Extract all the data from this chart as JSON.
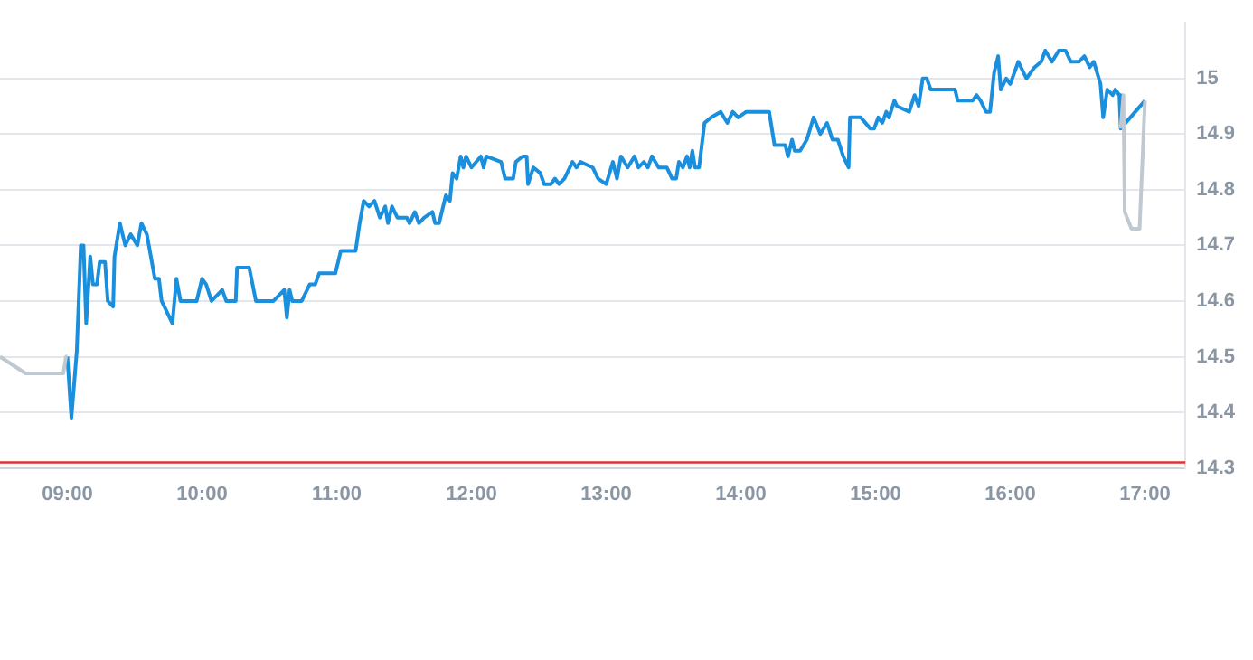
{
  "chart_data": {
    "type": "line",
    "xlim": [
      8.5,
      17.3
    ],
    "ylim": [
      14.3,
      15.1
    ],
    "xticks": [
      {
        "value": 9,
        "label": "09:00"
      },
      {
        "value": 10,
        "label": "10:00"
      },
      {
        "value": 11,
        "label": "11:00"
      },
      {
        "value": 12,
        "label": "12:00"
      },
      {
        "value": 13,
        "label": "13:00"
      },
      {
        "value": 14,
        "label": "14:00"
      },
      {
        "value": 15,
        "label": "15:00"
      },
      {
        "value": 16,
        "label": "16:00"
      },
      {
        "value": 17,
        "label": "17:00"
      }
    ],
    "yticks": [
      14.3,
      14.4,
      14.5,
      14.6,
      14.7,
      14.8,
      14.9,
      15
    ],
    "grid": "y",
    "legend": false,
    "marker": "none",
    "line_style": "solid",
    "ref_lines": [
      {
        "axis": "y",
        "value": 14.31,
        "color": "#e03030"
      }
    ],
    "series": [
      {
        "color": "#c0c8d0",
        "x": [
          8.5,
          8.69,
          8.97,
          8.99,
          9.0
        ],
        "values": [
          14.5,
          14.47,
          14.47,
          14.5,
          14.5
        ]
      },
      {
        "color": "#c0c8d0",
        "x": [
          16.82,
          16.84,
          16.85,
          16.9,
          16.96,
          17.0
        ],
        "values": [
          14.91,
          14.97,
          14.76,
          14.73,
          14.73,
          14.96
        ]
      },
      {
        "color": "#1a8fdd",
        "x": [
          9.0,
          9.03,
          9.07,
          9.1,
          9.12,
          9.14,
          9.17,
          9.19,
          9.22,
          9.24,
          9.28,
          9.3,
          9.34,
          9.35,
          9.39,
          9.43,
          9.47,
          9.52,
          9.55,
          9.59,
          9.62,
          9.65,
          9.68,
          9.7,
          9.78,
          9.81,
          9.84,
          9.96,
          10.0,
          10.03,
          10.07,
          10.15,
          10.18,
          10.25,
          10.26,
          10.35,
          10.4,
          10.53,
          10.61,
          10.63,
          10.65,
          10.67,
          10.74,
          10.8,
          10.84,
          10.87,
          10.91,
          10.99,
          11.03,
          11.14,
          11.17,
          11.2,
          11.24,
          11.28,
          11.32,
          11.36,
          11.38,
          11.41,
          11.45,
          11.52,
          11.54,
          11.58,
          11.61,
          11.65,
          11.71,
          11.73,
          11.76,
          11.81,
          11.84,
          11.86,
          11.89,
          11.92,
          11.94,
          11.96,
          12.0,
          12.07,
          12.09,
          12.11,
          12.22,
          12.25,
          12.31,
          12.33,
          12.38,
          12.41,
          12.42,
          12.46,
          12.51,
          12.54,
          12.59,
          12.62,
          12.65,
          12.69,
          12.75,
          12.78,
          12.81,
          12.9,
          12.94,
          13.0,
          13.05,
          13.08,
          13.11,
          13.16,
          13.21,
          13.24,
          13.28,
          13.31,
          13.34,
          13.39,
          13.45,
          13.49,
          13.52,
          13.54,
          13.57,
          13.6,
          13.62,
          13.64,
          13.66,
          13.69,
          13.73,
          13.78,
          13.85,
          13.9,
          13.94,
          13.98,
          14.04,
          14.21,
          14.25,
          14.33,
          14.35,
          14.38,
          14.4,
          14.44,
          14.49,
          14.54,
          14.59,
          14.64,
          14.68,
          14.72,
          14.76,
          14.8,
          14.81,
          14.89,
          14.96,
          14.99,
          15.02,
          15.05,
          15.08,
          15.1,
          15.14,
          15.16,
          15.25,
          15.29,
          15.32,
          15.35,
          15.38,
          15.41,
          15.59,
          15.61,
          15.72,
          15.75,
          15.78,
          15.82,
          15.85,
          15.88,
          15.91,
          15.93,
          15.97,
          16.0,
          16.06,
          16.12,
          16.18,
          16.23,
          16.26,
          16.31,
          16.36,
          16.41,
          16.45,
          16.51,
          16.55,
          16.59,
          16.62,
          16.67,
          16.69,
          16.72,
          16.76,
          16.78,
          16.81,
          16.82,
          17.0
        ],
        "values": [
          14.5,
          14.39,
          14.51,
          14.7,
          14.7,
          14.56,
          14.68,
          14.63,
          14.63,
          14.67,
          14.67,
          14.6,
          14.59,
          14.68,
          14.74,
          14.7,
          14.72,
          14.7,
          14.74,
          14.72,
          14.68,
          14.64,
          14.64,
          14.6,
          14.56,
          14.64,
          14.6,
          14.6,
          14.64,
          14.63,
          14.6,
          14.62,
          14.6,
          14.6,
          14.66,
          14.66,
          14.6,
          14.6,
          14.62,
          14.57,
          14.62,
          14.6,
          14.6,
          14.63,
          14.63,
          14.65,
          14.65,
          14.65,
          14.69,
          14.69,
          14.74,
          14.78,
          14.77,
          14.78,
          14.75,
          14.77,
          14.74,
          14.77,
          14.75,
          14.75,
          14.74,
          14.76,
          14.74,
          14.75,
          14.76,
          14.74,
          14.74,
          14.79,
          14.78,
          14.83,
          14.82,
          14.86,
          14.84,
          14.86,
          14.84,
          14.86,
          14.84,
          14.86,
          14.85,
          14.82,
          14.82,
          14.85,
          14.86,
          14.86,
          14.81,
          14.84,
          14.83,
          14.81,
          14.81,
          14.82,
          14.81,
          14.82,
          14.85,
          14.84,
          14.85,
          14.84,
          14.82,
          14.81,
          14.85,
          14.82,
          14.86,
          14.84,
          14.86,
          14.84,
          14.85,
          14.84,
          14.86,
          14.84,
          14.84,
          14.82,
          14.82,
          14.85,
          14.84,
          14.86,
          14.84,
          14.87,
          14.84,
          14.84,
          14.92,
          14.93,
          14.94,
          14.92,
          14.94,
          14.93,
          14.94,
          14.94,
          14.88,
          14.88,
          14.86,
          14.89,
          14.87,
          14.87,
          14.89,
          14.93,
          14.9,
          14.92,
          14.89,
          14.89,
          14.86,
          14.84,
          14.93,
          14.93,
          14.91,
          14.91,
          14.93,
          14.92,
          14.94,
          14.93,
          14.96,
          14.95,
          14.94,
          14.97,
          14.95,
          15.0,
          15.0,
          14.98,
          14.98,
          14.96,
          14.96,
          14.97,
          14.96,
          14.94,
          14.94,
          15.01,
          15.04,
          14.98,
          15.0,
          14.99,
          15.03,
          15.0,
          15.02,
          15.03,
          15.05,
          15.03,
          15.05,
          15.05,
          15.03,
          15.03,
          15.04,
          15.02,
          15.03,
          14.99,
          14.93,
          14.98,
          14.97,
          14.98,
          14.97,
          14.91,
          14.96
        ]
      }
    ]
  }
}
